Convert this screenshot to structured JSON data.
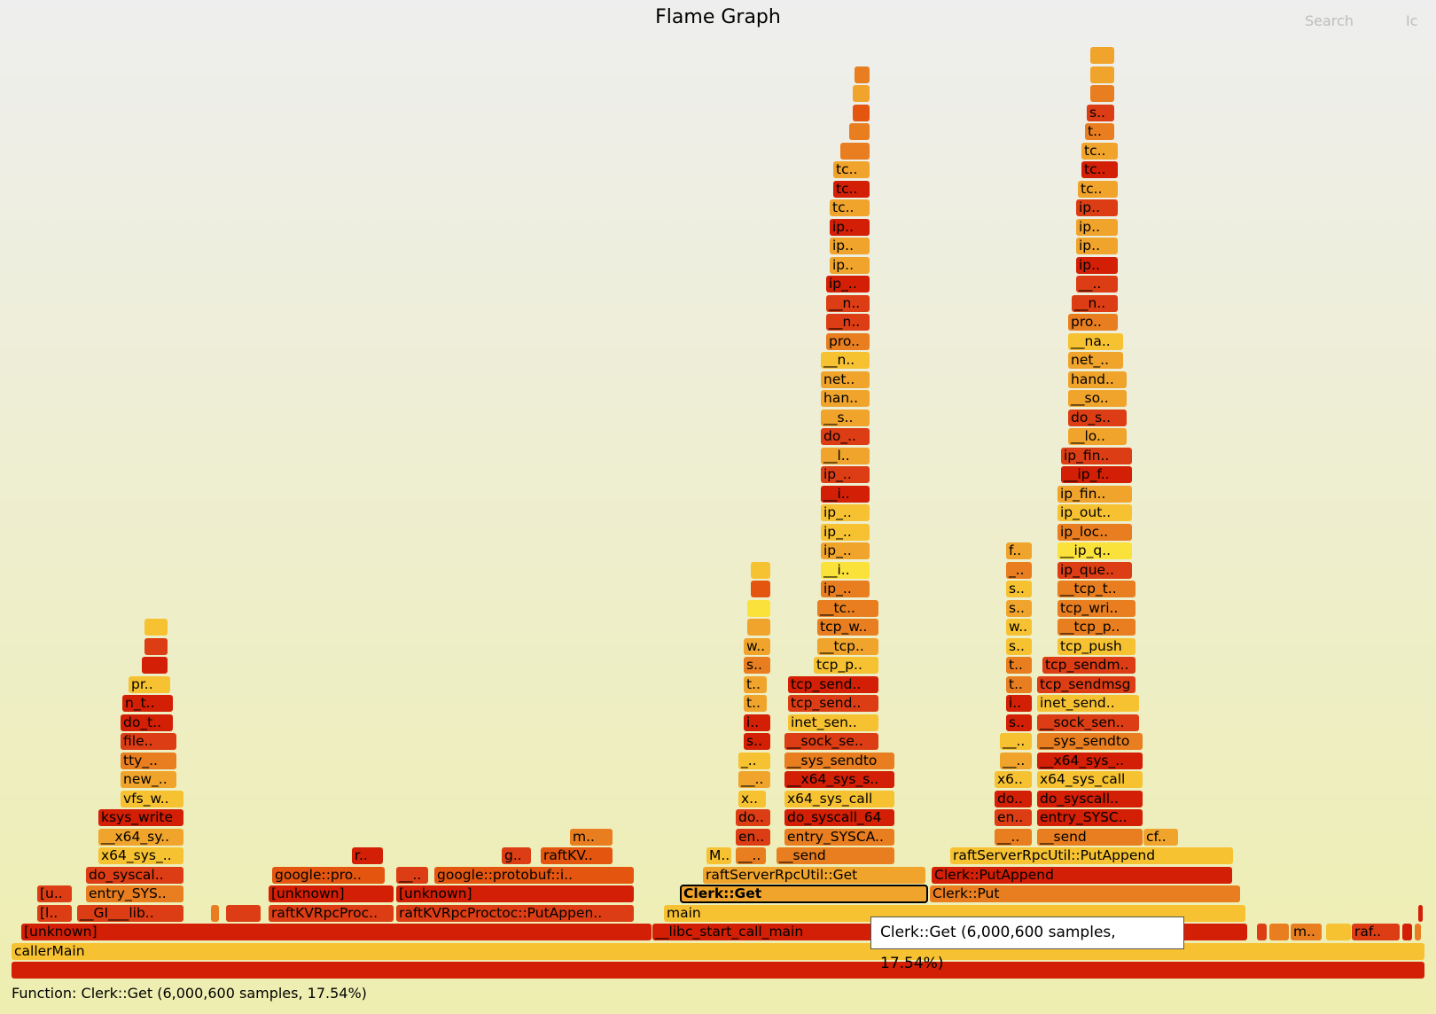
{
  "header": {
    "title": "Flame Graph",
    "search_label": "Search",
    "ic_label": "Ic"
  },
  "tooltip": {
    "text": "Clerk::Get (6,000,600 samples, 17.54%)"
  },
  "details": {
    "text": "Function: Clerk::Get (6,000,600 samples, 17.54%)"
  },
  "colors": {
    "dark_red": "#d31f05",
    "red": "#dd3d14",
    "orange_red": "#e4560f",
    "orange": "#e87e1f",
    "light_orange": "#f0a42b",
    "yellow_orange": "#f7c232",
    "yellow": "#fbe23a"
  },
  "frames": [
    {
      "text": "",
      "c": "#d31f05",
      "row": 0,
      "s": 13,
      "e": 1608
    },
    {
      "text": "callerMain",
      "c": "#f7c232",
      "row": 1,
      "s": 13,
      "e": 1608
    },
    {
      "text": "[unknown]",
      "c": "#d31f05",
      "row": 2,
      "s": 24,
      "e": 736
    },
    {
      "text": "__libc_start_call_main",
      "c": "#d31f05",
      "row": 2,
      "s": 736,
      "e": 1408
    },
    {
      "text": "",
      "c": "#dd3d14",
      "row": 2,
      "s": 1418,
      "e": 1430
    },
    {
      "text": "",
      "c": "#e87e1f",
      "row": 2,
      "s": 1432,
      "e": 1455
    },
    {
      "text": "m..",
      "c": "#e87e1f",
      "row": 2,
      "s": 1456,
      "e": 1492
    },
    {
      "text": "",
      "c": "#f7c232",
      "row": 2,
      "s": 1496,
      "e": 1525
    },
    {
      "text": "raf..",
      "c": "#dd3d14",
      "row": 2,
      "s": 1525,
      "e": 1580
    },
    {
      "text": "",
      "c": "#d31f05",
      "row": 2,
      "s": 1582,
      "e": 1594
    },
    {
      "text": "",
      "c": "#e87e1f",
      "row": 2,
      "s": 1596,
      "e": 1604
    },
    {
      "text": "[l..",
      "c": "#dd3d14",
      "row": 3,
      "s": 42,
      "e": 82
    },
    {
      "text": "__GI___lib..",
      "c": "#dd3d14",
      "row": 3,
      "s": 87,
      "e": 208
    },
    {
      "text": "",
      "c": "#e87e1f",
      "row": 3,
      "s": 238,
      "e": 248
    },
    {
      "text": "",
      "c": "#dd3d14",
      "row": 3,
      "s": 255,
      "e": 295
    },
    {
      "text": "raftKVRpcProc..",
      "c": "#dd3d14",
      "row": 3,
      "s": 303,
      "e": 445
    },
    {
      "text": "raftKVRpcProctoc::PutAppen..",
      "c": "#dd3d14",
      "row": 3,
      "s": 447,
      "e": 716
    },
    {
      "text": "main",
      "c": "#f7c232",
      "row": 3,
      "s": 749,
      "e": 1406
    },
    {
      "text": "",
      "c": "#d31f05",
      "row": 3,
      "s": 1600,
      "e": 1606
    },
    {
      "text": "[u..",
      "c": "#dd3d14",
      "row": 4,
      "s": 42,
      "e": 82
    },
    {
      "text": "entry_SYS..",
      "c": "#e87e1f",
      "row": 4,
      "s": 97,
      "e": 208
    },
    {
      "text": "[unknown]",
      "c": "#d31f05",
      "row": 4,
      "s": 303,
      "e": 445
    },
    {
      "text": "[unknown]",
      "c": "#d31f05",
      "row": 4,
      "s": 447,
      "e": 716
    },
    {
      "text": "Clerk::Get",
      "c": "#f0a42b",
      "row": 4,
      "s": 768,
      "e": 1047,
      "hl": true
    },
    {
      "text": "Clerk::Put",
      "c": "#e87e1f",
      "row": 4,
      "s": 1049,
      "e": 1400
    },
    {
      "text": "do_syscal..",
      "c": "#dd3d14",
      "row": 5,
      "s": 97,
      "e": 208
    },
    {
      "text": "google::pro..",
      "c": "#e4560f",
      "row": 5,
      "s": 307,
      "e": 435
    },
    {
      "text": "__..",
      "c": "#dd3d14",
      "row": 5,
      "s": 447,
      "e": 484
    },
    {
      "text": "google::protobuf::i..",
      "c": "#e4560f",
      "row": 5,
      "s": 490,
      "e": 716
    },
    {
      "text": "raftServerRpcUtil::Get",
      "c": "#f0a42b",
      "row": 5,
      "s": 793,
      "e": 1045
    },
    {
      "text": "Clerk::PutAppend",
      "c": "#d31f05",
      "row": 5,
      "s": 1051,
      "e": 1391
    },
    {
      "text": "x64_sys_..",
      "c": "#f7c232",
      "row": 6,
      "s": 111,
      "e": 208
    },
    {
      "text": "r..",
      "c": "#d31f05",
      "row": 6,
      "s": 397,
      "e": 433
    },
    {
      "text": "g..",
      "c": "#dd3d14",
      "row": 6,
      "s": 566,
      "e": 600
    },
    {
      "text": "raftKV..",
      "c": "#e4560f",
      "row": 6,
      "s": 610,
      "e": 692
    },
    {
      "text": "M..",
      "c": "#f7c232",
      "row": 6,
      "s": 797,
      "e": 826
    },
    {
      "text": "__..",
      "c": "#e87e1f",
      "row": 6,
      "s": 830,
      "e": 865
    },
    {
      "text": "__send",
      "c": "#e87e1f",
      "row": 6,
      "s": 876,
      "e": 1010
    },
    {
      "text": "raftServerRpcUtil::PutAppend",
      "c": "#f7c232",
      "row": 6,
      "s": 1072,
      "e": 1392
    },
    {
      "text": "__x64_sy..",
      "c": "#f0a42b",
      "row": 7,
      "s": 111,
      "e": 208
    },
    {
      "text": "m..",
      "c": "#e87e1f",
      "row": 7,
      "s": 643,
      "e": 692
    },
    {
      "text": "en..",
      "c": "#dd3d14",
      "row": 7,
      "s": 830,
      "e": 870
    },
    {
      "text": "entry_SYSCA..",
      "c": "#e87e1f",
      "row": 7,
      "s": 885,
      "e": 1010
    },
    {
      "text": "__..",
      "c": "#e87e1f",
      "row": 7,
      "s": 1122,
      "e": 1165
    },
    {
      "text": "__send",
      "c": "#e87e1f",
      "row": 7,
      "s": 1170,
      "e": 1290
    },
    {
      "text": "cf..",
      "c": "#f0a42b",
      "row": 7,
      "s": 1290,
      "e": 1330
    },
    {
      "text": "ksys_write",
      "c": "#d31f05",
      "row": 8,
      "s": 111,
      "e": 208
    },
    {
      "text": "do..",
      "c": "#dd3d14",
      "row": 8,
      "s": 830,
      "e": 870
    },
    {
      "text": "do_syscall_64",
      "c": "#d31f05",
      "row": 8,
      "s": 885,
      "e": 1010
    },
    {
      "text": "en..",
      "c": "#dd3d14",
      "row": 8,
      "s": 1122,
      "e": 1165
    },
    {
      "text": "entry_SYSC..",
      "c": "#d31f05",
      "row": 8,
      "s": 1170,
      "e": 1290
    },
    {
      "text": "vfs_w..",
      "c": "#f7c232",
      "row": 9,
      "s": 136,
      "e": 208
    },
    {
      "text": "x..",
      "c": "#f7c232",
      "row": 9,
      "s": 833,
      "e": 865
    },
    {
      "text": "x64_sys_call",
      "c": "#f7c232",
      "row": 9,
      "s": 885,
      "e": 1010
    },
    {
      "text": "do..",
      "c": "#d31f05",
      "row": 9,
      "s": 1122,
      "e": 1165
    },
    {
      "text": "do_syscall..",
      "c": "#d31f05",
      "row": 9,
      "s": 1170,
      "e": 1290
    },
    {
      "text": "new_..",
      "c": "#f0a42b",
      "row": 10,
      "s": 136,
      "e": 200
    },
    {
      "text": "__..",
      "c": "#f0a42b",
      "row": 10,
      "s": 833,
      "e": 870
    },
    {
      "text": "__x64_sys_s..",
      "c": "#d31f05",
      "row": 10,
      "s": 885,
      "e": 1010
    },
    {
      "text": "x6..",
      "c": "#f7c232",
      "row": 10,
      "s": 1122,
      "e": 1165
    },
    {
      "text": "x64_sys_call",
      "c": "#f7c232",
      "row": 10,
      "s": 1170,
      "e": 1290
    },
    {
      "text": "tty_..",
      "c": "#e87e1f",
      "row": 11,
      "s": 136,
      "e": 200
    },
    {
      "text": "_..",
      "c": "#f7c232",
      "row": 11,
      "s": 833,
      "e": 870
    },
    {
      "text": "__sys_sendto",
      "c": "#e87e1f",
      "row": 11,
      "s": 885,
      "e": 1010
    },
    {
      "text": "__..",
      "c": "#f0a42b",
      "row": 11,
      "s": 1128,
      "e": 1165
    },
    {
      "text": "__x64_sys_..",
      "c": "#d31f05",
      "row": 11,
      "s": 1170,
      "e": 1290
    },
    {
      "text": "file..",
      "c": "#dd3d14",
      "row": 12,
      "s": 136,
      "e": 200
    },
    {
      "text": "s..",
      "c": "#d31f05",
      "row": 12,
      "s": 839,
      "e": 870
    },
    {
      "text": "__sock_se..",
      "c": "#dd3d14",
      "row": 12,
      "s": 885,
      "e": 992
    },
    {
      "text": "__..",
      "c": "#f7c232",
      "row": 12,
      "s": 1128,
      "e": 1165
    },
    {
      "text": "__sys_sendto",
      "c": "#e87e1f",
      "row": 12,
      "s": 1170,
      "e": 1290
    },
    {
      "text": "do_t..",
      "c": "#d31f05",
      "row": 13,
      "s": 136,
      "e": 196
    },
    {
      "text": "i..",
      "c": "#d31f05",
      "row": 13,
      "s": 839,
      "e": 870
    },
    {
      "text": "inet_sen..",
      "c": "#f7c232",
      "row": 13,
      "s": 889,
      "e": 992
    },
    {
      "text": "s..",
      "c": "#d31f05",
      "row": 13,
      "s": 1135,
      "e": 1165
    },
    {
      "text": "__sock_sen..",
      "c": "#dd3d14",
      "row": 13,
      "s": 1170,
      "e": 1286
    },
    {
      "text": "n_t..",
      "c": "#d31f05",
      "row": 14,
      "s": 138,
      "e": 196
    },
    {
      "text": "t..",
      "c": "#f0a42b",
      "row": 14,
      "s": 839,
      "e": 866
    },
    {
      "text": "tcp_send..",
      "c": "#dd3d14",
      "row": 14,
      "s": 889,
      "e": 992
    },
    {
      "text": "i..",
      "c": "#d31f05",
      "row": 14,
      "s": 1135,
      "e": 1165
    },
    {
      "text": "inet_send..",
      "c": "#f7c232",
      "row": 14,
      "s": 1170,
      "e": 1286
    },
    {
      "text": "pr..",
      "c": "#f7c232",
      "row": 15,
      "s": 145,
      "e": 193
    },
    {
      "text": "t..",
      "c": "#f0a42b",
      "row": 15,
      "s": 839,
      "e": 866
    },
    {
      "text": "tcp_send..",
      "c": "#d31f05",
      "row": 15,
      "s": 889,
      "e": 992
    },
    {
      "text": "t..",
      "c": "#e87e1f",
      "row": 15,
      "s": 1135,
      "e": 1165
    },
    {
      "text": "tcp_sendmsg",
      "c": "#dd3d14",
      "row": 15,
      "s": 1170,
      "e": 1282
    },
    {
      "text": "",
      "c": "#d31f05",
      "row": 16,
      "s": 160,
      "e": 190
    },
    {
      "text": "s..",
      "c": "#e87e1f",
      "row": 16,
      "s": 839,
      "e": 870
    },
    {
      "text": "tcp_p..",
      "c": "#f7c232",
      "row": 16,
      "s": 918,
      "e": 992
    },
    {
      "text": "t..",
      "c": "#e87e1f",
      "row": 16,
      "s": 1135,
      "e": 1165
    },
    {
      "text": "tcp_sendm..",
      "c": "#dd3d14",
      "row": 16,
      "s": 1176,
      "e": 1282
    },
    {
      "text": "",
      "c": "#dd3d14",
      "row": 17,
      "s": 163,
      "e": 190
    },
    {
      "text": "w..",
      "c": "#f0a42b",
      "row": 17,
      "s": 839,
      "e": 870
    },
    {
      "text": "__tcp..",
      "c": "#f0a42b",
      "row": 17,
      "s": 922,
      "e": 992
    },
    {
      "text": "s..",
      "c": "#f7c232",
      "row": 17,
      "s": 1135,
      "e": 1165
    },
    {
      "text": "tcp_push",
      "c": "#f7c232",
      "row": 17,
      "s": 1193,
      "e": 1282
    },
    {
      "text": "",
      "c": "#f7c232",
      "row": 18,
      "s": 163,
      "e": 190
    },
    {
      "text": "",
      "c": "#f0a42b",
      "row": 18,
      "s": 843,
      "e": 870
    },
    {
      "text": "tcp_w..",
      "c": "#e87e1f",
      "row": 18,
      "s": 922,
      "e": 992
    },
    {
      "text": "w..",
      "c": "#f7c232",
      "row": 18,
      "s": 1135,
      "e": 1165
    },
    {
      "text": "__tcp_p..",
      "c": "#e87e1f",
      "row": 18,
      "s": 1193,
      "e": 1282
    },
    {
      "text": "",
      "c": "#fbe23a",
      "row": 19,
      "s": 843,
      "e": 870
    },
    {
      "text": "__tc..",
      "c": "#e87e1f",
      "row": 19,
      "s": 922,
      "e": 992
    },
    {
      "text": "s..",
      "c": "#f0a42b",
      "row": 19,
      "s": 1135,
      "e": 1165
    },
    {
      "text": "tcp_wri..",
      "c": "#e87e1f",
      "row": 19,
      "s": 1193,
      "e": 1282
    },
    {
      "text": "",
      "c": "#e4560f",
      "row": 20,
      "s": 847,
      "e": 870
    },
    {
      "text": "ip_..",
      "c": "#e87e1f",
      "row": 20,
      "s": 926,
      "e": 982
    },
    {
      "text": "s..",
      "c": "#f7c232",
      "row": 20,
      "s": 1135,
      "e": 1165
    },
    {
      "text": "__tcp_t..",
      "c": "#e87e1f",
      "row": 20,
      "s": 1193,
      "e": 1282
    },
    {
      "text": "",
      "c": "#f7c232",
      "row": 21,
      "s": 847,
      "e": 870
    },
    {
      "text": "__i..",
      "c": "#fbe23a",
      "row": 21,
      "s": 926,
      "e": 982
    },
    {
      "text": "_..",
      "c": "#e87e1f",
      "row": 21,
      "s": 1135,
      "e": 1165
    },
    {
      "text": "ip_que..",
      "c": "#dd3d14",
      "row": 21,
      "s": 1193,
      "e": 1278
    },
    {
      "text": "ip_..",
      "c": "#f0a42b",
      "row": 22,
      "s": 926,
      "e": 982
    },
    {
      "text": "f..",
      "c": "#f0a42b",
      "row": 22,
      "s": 1135,
      "e": 1165
    },
    {
      "text": "__ip_q..",
      "c": "#fbe23a",
      "row": 22,
      "s": 1193,
      "e": 1278
    },
    {
      "text": "ip_..",
      "c": "#f7c232",
      "row": 23,
      "s": 926,
      "e": 982
    },
    {
      "text": "ip_loc..",
      "c": "#e87e1f",
      "row": 23,
      "s": 1193,
      "e": 1278
    },
    {
      "text": "ip_..",
      "c": "#f7c232",
      "row": 24,
      "s": 926,
      "e": 982
    },
    {
      "text": "ip_out..",
      "c": "#f7c232",
      "row": 24,
      "s": 1193,
      "e": 1278
    },
    {
      "text": "__i..",
      "c": "#d31f05",
      "row": 25,
      "s": 926,
      "e": 982
    },
    {
      "text": "ip_fin..",
      "c": "#f0a42b",
      "row": 25,
      "s": 1193,
      "e": 1278
    },
    {
      "text": "ip_..",
      "c": "#dd3d14",
      "row": 26,
      "s": 926,
      "e": 982
    },
    {
      "text": "__ip_f..",
      "c": "#d31f05",
      "row": 26,
      "s": 1197,
      "e": 1278
    },
    {
      "text": "__l..",
      "c": "#f0a42b",
      "row": 27,
      "s": 926,
      "e": 982
    },
    {
      "text": "ip_fin..",
      "c": "#dd3d14",
      "row": 27,
      "s": 1197,
      "e": 1278
    },
    {
      "text": "do_..",
      "c": "#dd3d14",
      "row": 28,
      "s": 926,
      "e": 982
    },
    {
      "text": "__lo..",
      "c": "#f0a42b",
      "row": 28,
      "s": 1205,
      "e": 1272
    },
    {
      "text": "__s..",
      "c": "#f0a42b",
      "row": 29,
      "s": 926,
      "e": 982
    },
    {
      "text": "do_s..",
      "c": "#dd3d14",
      "row": 29,
      "s": 1205,
      "e": 1272
    },
    {
      "text": "han..",
      "c": "#f0a42b",
      "row": 30,
      "s": 926,
      "e": 982
    },
    {
      "text": "__so..",
      "c": "#f0a42b",
      "row": 30,
      "s": 1205,
      "e": 1272
    },
    {
      "text": "net..",
      "c": "#f0a42b",
      "row": 31,
      "s": 926,
      "e": 982
    },
    {
      "text": "hand..",
      "c": "#f0a42b",
      "row": 31,
      "s": 1205,
      "e": 1272
    },
    {
      "text": "__n..",
      "c": "#f7c232",
      "row": 32,
      "s": 926,
      "e": 982
    },
    {
      "text": "net_..",
      "c": "#f0a42b",
      "row": 32,
      "s": 1205,
      "e": 1268
    },
    {
      "text": "pro..",
      "c": "#e87e1f",
      "row": 33,
      "s": 932,
      "e": 982
    },
    {
      "text": "__na..",
      "c": "#f7c232",
      "row": 33,
      "s": 1205,
      "e": 1268
    },
    {
      "text": "__n..",
      "c": "#dd3d14",
      "row": 34,
      "s": 932,
      "e": 982
    },
    {
      "text": "pro..",
      "c": "#e87e1f",
      "row": 34,
      "s": 1205,
      "e": 1262
    },
    {
      "text": "__n..",
      "c": "#dd3d14",
      "row": 35,
      "s": 932,
      "e": 982
    },
    {
      "text": "__n..",
      "c": "#dd3d14",
      "row": 35,
      "s": 1209,
      "e": 1262
    },
    {
      "text": "ip_..",
      "c": "#d31f05",
      "row": 36,
      "s": 932,
      "e": 982
    },
    {
      "text": "__..",
      "c": "#dd3d14",
      "row": 36,
      "s": 1214,
      "e": 1262
    },
    {
      "text": "ip..",
      "c": "#f0a42b",
      "row": 37,
      "s": 936,
      "e": 982
    },
    {
      "text": "ip..",
      "c": "#d31f05",
      "row": 37,
      "s": 1214,
      "e": 1262
    },
    {
      "text": "ip..",
      "c": "#f0a42b",
      "row": 38,
      "s": 936,
      "e": 982
    },
    {
      "text": "ip..",
      "c": "#f0a42b",
      "row": 38,
      "s": 1214,
      "e": 1262
    },
    {
      "text": "ip..",
      "c": "#d31f05",
      "row": 39,
      "s": 936,
      "e": 982
    },
    {
      "text": "ip..",
      "c": "#f0a42b",
      "row": 39,
      "s": 1214,
      "e": 1262
    },
    {
      "text": "tc..",
      "c": "#f0a42b",
      "row": 40,
      "s": 936,
      "e": 982
    },
    {
      "text": "ip..",
      "c": "#dd3d14",
      "row": 40,
      "s": 1214,
      "e": 1262
    },
    {
      "text": "tc..",
      "c": "#d31f05",
      "row": 41,
      "s": 940,
      "e": 982
    },
    {
      "text": "tc..",
      "c": "#f0a42b",
      "row": 41,
      "s": 1216,
      "e": 1262
    },
    {
      "text": "tc..",
      "c": "#f0a42b",
      "row": 42,
      "s": 940,
      "e": 982
    },
    {
      "text": "tc..",
      "c": "#d31f05",
      "row": 42,
      "s": 1220,
      "e": 1262
    },
    {
      "text": "",
      "c": "#e87e1f",
      "row": 43,
      "s": 948,
      "e": 982
    },
    {
      "text": "tc..",
      "c": "#f0a42b",
      "row": 43,
      "s": 1220,
      "e": 1262
    },
    {
      "text": "",
      "c": "#e87e1f",
      "row": 44,
      "s": 958,
      "e": 982
    },
    {
      "text": "t..",
      "c": "#e87e1f",
      "row": 44,
      "s": 1224,
      "e": 1258
    },
    {
      "text": "",
      "c": "#e4560f",
      "row": 45,
      "s": 962,
      "e": 982
    },
    {
      "text": "s..",
      "c": "#dd3d14",
      "row": 45,
      "s": 1226,
      "e": 1258
    },
    {
      "text": "",
      "c": "#f0a42b",
      "row": 46,
      "s": 962,
      "e": 982
    },
    {
      "text": "",
      "c": "#e87e1f",
      "row": 46,
      "s": 1230,
      "e": 1258
    },
    {
      "text": "",
      "c": "#e87e1f",
      "row": 47,
      "s": 964,
      "e": 982
    },
    {
      "text": "",
      "c": "#f0a42b",
      "row": 47,
      "s": 1230,
      "e": 1258
    },
    {
      "text": "",
      "c": "#f0a42b",
      "row": 48,
      "s": 1230,
      "e": 1258
    }
  ]
}
